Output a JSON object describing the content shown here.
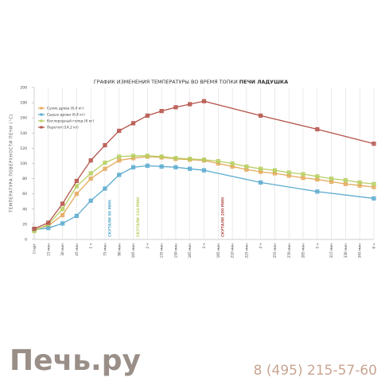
{
  "chart_data": {
    "type": "line",
    "title_parts": [
      "ГРАФИК ИЗМЕНЕНИЯ ТЕМПЕРАТУРЫ ВО ВРЕМЯ ТОПКИ",
      "ПЕЧИ ЛАДУШКА"
    ],
    "ylabel": "ТЕМПЕРАТУРА ПОВЕРХНОСТИ ПЕЧИ (°C)",
    "xlim": [
      0,
      360
    ],
    "xticks": [
      {
        "value": 0,
        "label": "Старт"
      },
      {
        "value": 15,
        "label": "15 мин"
      },
      {
        "value": 30,
        "label": "30 мин"
      },
      {
        "value": 45,
        "label": "45 мин"
      },
      {
        "value": 60,
        "label": "1 ч"
      },
      {
        "value": 75,
        "label": "75 мин"
      },
      {
        "value": 90,
        "label": "90 мин"
      },
      {
        "value": 105,
        "label": "105 мин"
      },
      {
        "value": 120,
        "label": "2 ч"
      },
      {
        "value": 135,
        "label": "135 мин"
      },
      {
        "value": 150,
        "label": "150 мин"
      },
      {
        "value": 165,
        "label": "165 мин"
      },
      {
        "value": 180,
        "label": "3 ч"
      },
      {
        "value": 195,
        "label": "195 мин"
      },
      {
        "value": 210,
        "label": "210 мин"
      },
      {
        "value": 225,
        "label": "225 мин"
      },
      {
        "value": 240,
        "label": "4 ч"
      },
      {
        "value": 255,
        "label": "255 мин"
      },
      {
        "value": 270,
        "label": "270 мин"
      },
      {
        "value": 285,
        "label": "285 мин"
      },
      {
        "value": 300,
        "label": "5 ч"
      },
      {
        "value": 315,
        "label": "315 мин"
      },
      {
        "value": 330,
        "label": "330 мин"
      },
      {
        "value": 345,
        "label": "345 мин"
      },
      {
        "value": 360,
        "label": "6 ч"
      }
    ],
    "ylim": [
      0,
      200
    ],
    "yticks": [
      0,
      20,
      40,
      60,
      80,
      100,
      120,
      140,
      160,
      180,
      200
    ],
    "grid": true,
    "legend": "upper-left",
    "series": [
      {
        "name": "Сухие дрова (6,4 кг)",
        "color": "#e5a95c",
        "x": [
          0,
          15,
          30,
          45,
          60,
          75,
          90,
          105,
          120,
          135,
          150,
          165,
          180,
          195,
          210,
          225,
          240,
          255,
          270,
          285,
          300,
          315,
          330,
          345,
          360
        ],
        "values": [
          13,
          18,
          32,
          60,
          80,
          93,
          104,
          107,
          109,
          108,
          106,
          105,
          104,
          100,
          96,
          92,
          89,
          87,
          84,
          81,
          79,
          76,
          73,
          71,
          69
        ]
      },
      {
        "name": "Сырые дрова (6,4 кг)",
        "color": "#5aabd0",
        "x": [
          0,
          15,
          30,
          45,
          60,
          75,
          90,
          105,
          120,
          135,
          150,
          165,
          180,
          240,
          300,
          360
        ],
        "values": [
          13,
          15,
          21,
          31,
          51,
          67,
          85,
          95,
          97,
          96,
          95,
          93,
          91,
          75,
          63,
          54
        ]
      },
      {
        "name": "Кислородный голод (6 кг)",
        "color": "#b8cf62",
        "x": [
          0,
          15,
          30,
          45,
          60,
          75,
          90,
          105,
          120,
          135,
          150,
          165,
          180,
          195,
          210,
          225,
          240,
          255,
          270,
          285,
          300,
          315,
          330,
          345,
          360
        ],
        "values": [
          11,
          20,
          40,
          70,
          87,
          101,
          109,
          110,
          110,
          109,
          107,
          106,
          105,
          103,
          100,
          96,
          93,
          91,
          88,
          86,
          83,
          80,
          78,
          75,
          73
        ]
      },
      {
        "name": "Перетоп (14,2 кг)",
        "color": "#b5534b",
        "x": [
          0,
          15,
          30,
          45,
          60,
          75,
          90,
          105,
          120,
          135,
          150,
          165,
          180,
          240,
          300,
          360
        ],
        "values": [
          14,
          22,
          47,
          77,
          104,
          124,
          143,
          153,
          163,
          169,
          174,
          178,
          182,
          163,
          145,
          126
        ]
      }
    ],
    "annotations": [
      {
        "text": "СКУТАЛИ 80 МИН",
        "x": 80,
        "color": "#5aabd0"
      },
      {
        "text": "СКУТАЛИ 110 МИН",
        "x": 110,
        "color": "#b8cf62"
      },
      {
        "text": "СКУТАЛИ 200 МИН",
        "x": 200,
        "color": "#b5534b"
      }
    ]
  },
  "brand": "Печь.ру",
  "phone": "8 (495) 215-57-60"
}
